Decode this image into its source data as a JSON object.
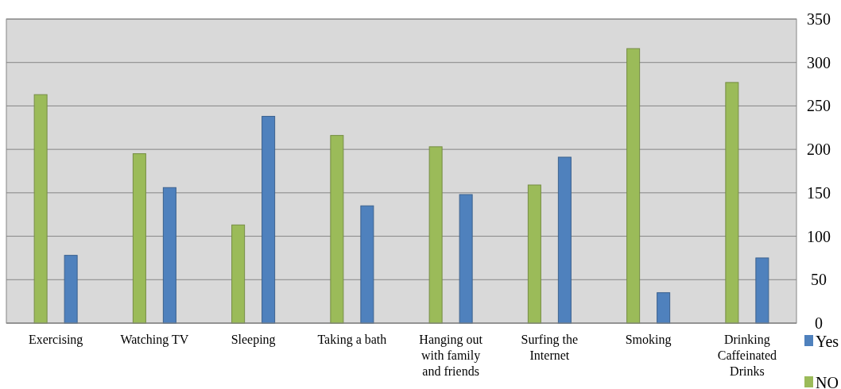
{
  "chart_data": {
    "type": "bar",
    "categories": [
      "Exercising",
      "Watching TV",
      "Sleeping",
      "Taking a bath",
      "Hanging out with family and friends",
      "Surfing the Internet",
      "Smoking",
      "Drinking Caffeinated Drinks"
    ],
    "series": [
      {
        "name": "NO",
        "color": "#9bbb59",
        "values": [
          263,
          195,
          113,
          216,
          203,
          159,
          316,
          277
        ]
      },
      {
        "name": "Yes",
        "color": "#4f81bd",
        "values": [
          78,
          156,
          238,
          135,
          148,
          191,
          35,
          75
        ]
      }
    ],
    "ylim": [
      0,
      350
    ],
    "yticks": [
      0,
      50,
      100,
      150,
      200,
      250,
      300,
      350
    ],
    "grid": "y",
    "legend": "bottom right"
  }
}
